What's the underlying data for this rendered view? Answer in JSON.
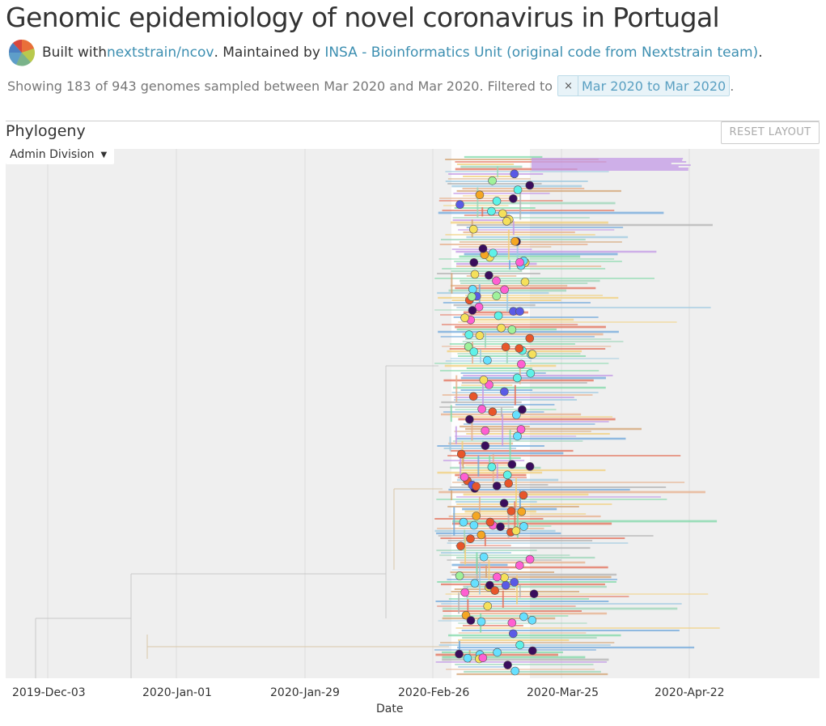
{
  "header": {
    "title": "Genomic epidemiology of novel coronavirus in Portugal",
    "built_with_prefix": "Built with ",
    "built_with_link": "nextstrain/ncov",
    "maintained_prefix": ". Maintained by ",
    "maintainer_link": "INSA - Bioinformatics Unit (original code from Nextstrain team)",
    "maintainer_suffix": "."
  },
  "summary": {
    "text": "Showing 183 of 943 genomes sampled between Mar 2020 and Mar 2020. Filtered to",
    "filter_remove": "×",
    "filter_label": "Mar 2020 to Mar 2020",
    "suffix": "."
  },
  "panel": {
    "title": "Phylogeny",
    "reset_label": "RESET LAYOUT",
    "color_by": "Admin Division"
  },
  "axis": {
    "ticks": [
      "2019-Dec-03",
      "2020-Jan-01",
      "2020-Jan-29",
      "2020-Feb-26",
      "2020-Mar-25",
      "2020-Apr-22"
    ],
    "title": "Date"
  },
  "colors": {
    "link": "#3d8fb1",
    "tree_background": "#efefef",
    "window_highlight": "#ffffff",
    "palette": [
      "#7fd9a8",
      "#b4b4b4",
      "#c49ae6",
      "#9ecae1",
      "#e7b08b",
      "#d4a373",
      "#e37059",
      "#f2cf7a",
      "#6fa8dc",
      "#9bd6b8"
    ]
  }
}
